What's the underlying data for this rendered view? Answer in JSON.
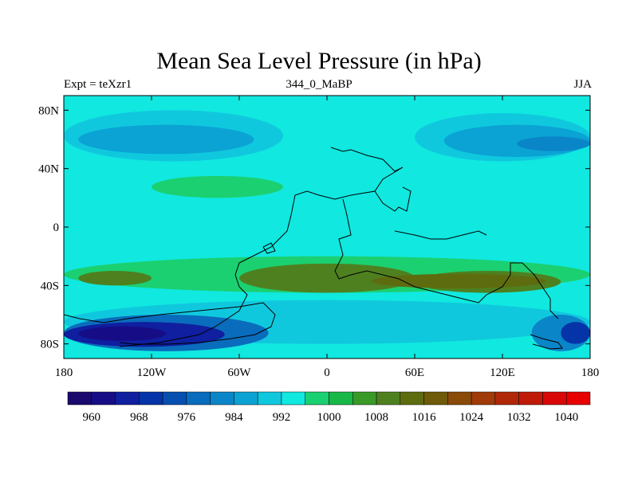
{
  "chart_data": {
    "type": "heatmap",
    "title": "Mean Sea Level Pressure (in hPa)",
    "left_label": "Expt = teXzr1",
    "center_label": "344_0_MaBP",
    "right_label": "JJA",
    "xlim": [
      -180,
      180
    ],
    "ylim": [
      -90,
      90
    ],
    "x_ticks": [
      {
        "value": -180,
        "label": "180"
      },
      {
        "value": -120,
        "label": "120W"
      },
      {
        "value": -60,
        "label": "60W"
      },
      {
        "value": 0,
        "label": "0"
      },
      {
        "value": 60,
        "label": "60E"
      },
      {
        "value": 120,
        "label": "120E"
      },
      {
        "value": 180,
        "label": "180"
      }
    ],
    "y_ticks": [
      {
        "value": 80,
        "label": "80N"
      },
      {
        "value": 40,
        "label": "40N"
      },
      {
        "value": 0,
        "label": "0"
      },
      {
        "value": -40,
        "label": "40S"
      },
      {
        "value": -80,
        "label": "80S"
      }
    ],
    "colorbar": {
      "levels": [
        960,
        964,
        968,
        972,
        976,
        980,
        984,
        988,
        992,
        996,
        1000,
        1004,
        1008,
        1012,
        1016,
        1020,
        1024,
        1028,
        1032,
        1036,
        1040
      ],
      "colors": [
        "#1a0a6e",
        "#160d86",
        "#0f1fa0",
        "#0533a8",
        "#064fb0",
        "#0a6cbc",
        "#0a85c8",
        "#0aa3d4",
        "#10c8de",
        "#10e8e0",
        "#1bd070",
        "#18b848",
        "#3a9a28",
        "#4e8020",
        "#5e6c10",
        "#6e5a08",
        "#8a4a08",
        "#a03a08",
        "#b02808",
        "#c01a08",
        "#d80808",
        "#e80000"
      ],
      "tick_labels": [
        "960",
        "968",
        "976",
        "984",
        "992",
        "1000",
        "1008",
        "1016",
        "1024",
        "1032",
        "1040"
      ]
    },
    "pressure_regions": [
      {
        "desc": "background",
        "value": 1000,
        "color": "#10e8e0",
        "lon": [
          -180,
          180
        ],
        "lat": [
          -90,
          90
        ]
      },
      {
        "desc": "north-pacific-low",
        "value": 992,
        "color": "#10c8de",
        "lon": [
          -180,
          -30
        ],
        "lat": [
          45,
          80
        ]
      },
      {
        "desc": "north-pacific-low-core",
        "value": 988,
        "color": "#0aa3d4",
        "lon": [
          -170,
          -50
        ],
        "lat": [
          50,
          70
        ]
      },
      {
        "desc": "north-low-east",
        "value": 992,
        "color": "#10c8de",
        "lon": [
          60,
          180
        ],
        "lat": [
          45,
          78
        ]
      },
      {
        "desc": "north-low-east-core",
        "value": 988,
        "color": "#0aa3d4",
        "lon": [
          80,
          180
        ],
        "lat": [
          48,
          70
        ]
      },
      {
        "desc": "north-low-east-deep",
        "value": 984,
        "color": "#0a85c8",
        "lon": [
          130,
          180
        ],
        "lat": [
          52,
          62
        ]
      },
      {
        "desc": "northern-subtropical-high",
        "value": 1004,
        "color": "#1bd070",
        "lon": [
          -120,
          -30
        ],
        "lat": [
          20,
          35
        ]
      },
      {
        "desc": "southern-subtropical-belt",
        "value": 1004,
        "color": "#1bd070",
        "lon": [
          -180,
          180
        ],
        "lat": [
          -45,
          -20
        ]
      },
      {
        "desc": "southern-high-west",
        "value": 1012,
        "color": "#4e8020",
        "lon": [
          -170,
          -120
        ],
        "lat": [
          -40,
          -30
        ]
      },
      {
        "desc": "southern-high-central",
        "value": 1012,
        "color": "#4e8020",
        "lon": [
          -60,
          60
        ],
        "lat": [
          -45,
          -25
        ]
      },
      {
        "desc": "southern-high-east",
        "value": 1012,
        "color": "#4e8020",
        "lon": [
          60,
          160
        ],
        "lat": [
          -45,
          -30
        ]
      },
      {
        "desc": "southern-high-core",
        "value": 1016,
        "color": "#5e6c10",
        "lon": [
          30,
          150
        ],
        "lat": [
          -42,
          -32
        ]
      },
      {
        "desc": "southern-ocean-low-belt",
        "value": 996,
        "color": "#10c8de",
        "lon": [
          -180,
          180
        ],
        "lat": [
          -80,
          -50
        ]
      },
      {
        "desc": "southern-low-west",
        "value": 980,
        "color": "#0a6cbc",
        "lon": [
          -180,
          -40
        ],
        "lat": [
          -85,
          -60
        ]
      },
      {
        "desc": "southern-low-west-core",
        "value": 968,
        "color": "#0f1fa0",
        "lon": [
          -180,
          -70
        ],
        "lat": [
          -82,
          -65
        ]
      },
      {
        "desc": "southern-low-west-deep",
        "value": 960,
        "color": "#160d86",
        "lon": [
          -170,
          -110
        ],
        "lat": [
          -78,
          -68
        ]
      },
      {
        "desc": "southern-low-east",
        "value": 984,
        "color": "#0a85c8",
        "lon": [
          140,
          180
        ],
        "lat": [
          -85,
          -60
        ]
      },
      {
        "desc": "southern-low-east-core",
        "value": 976,
        "color": "#0533a8",
        "lon": [
          160,
          180
        ],
        "lat": [
          -80,
          -65
        ]
      }
    ]
  }
}
